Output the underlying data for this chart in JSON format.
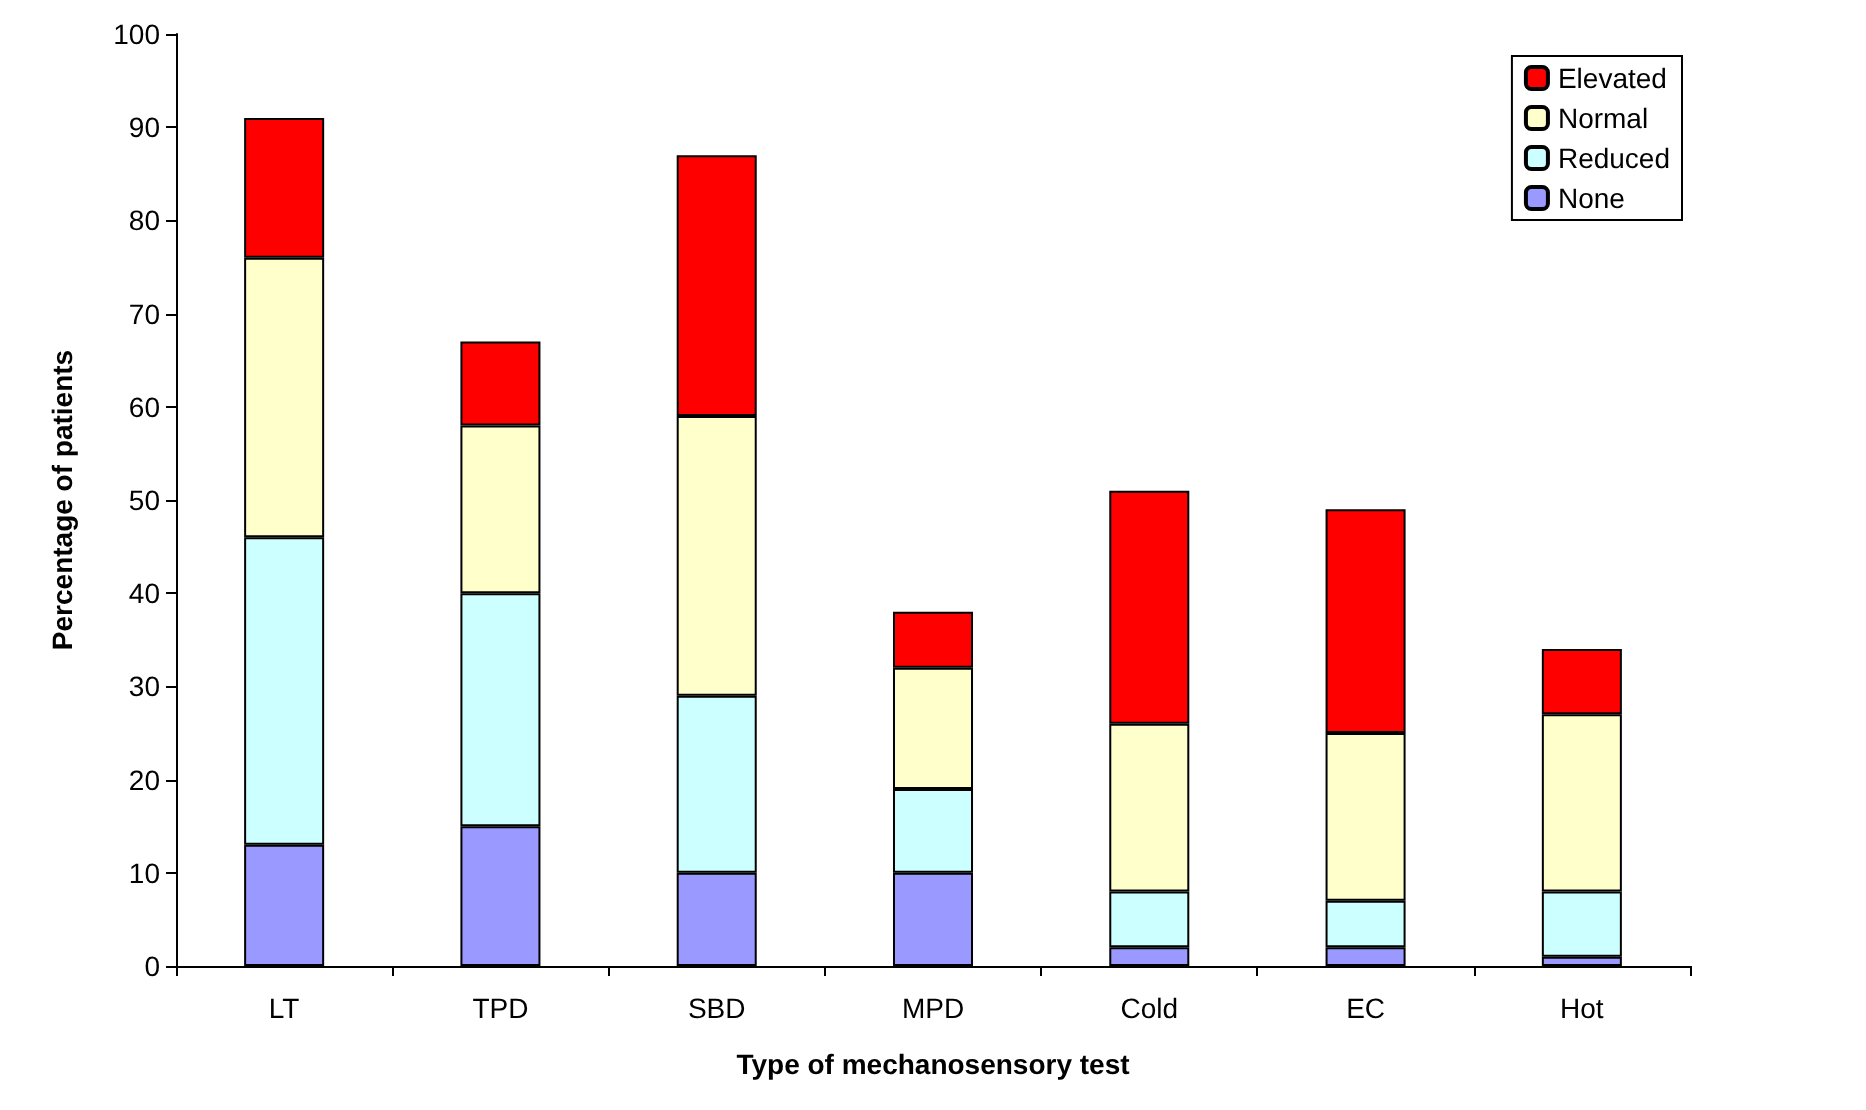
{
  "chart_data": {
    "type": "bar",
    "stacked": true,
    "xlabel": "Type of mechanosensory test",
    "ylabel": "Percentage of patients",
    "categories": [
      "LT",
      "TPD",
      "SBD",
      "MPD",
      "Cold",
      "EC",
      "Hot"
    ],
    "series": [
      {
        "name": "None",
        "color": "#9999ff",
        "values": [
          13,
          15,
          10,
          10,
          2,
          2,
          1
        ]
      },
      {
        "name": "Reduced",
        "color": "#ccffff",
        "values": [
          33,
          25,
          19,
          9,
          6,
          5,
          7
        ]
      },
      {
        "name": "Normal",
        "color": "#ffffcc",
        "values": [
          30,
          18,
          30,
          13,
          18,
          18,
          19
        ]
      },
      {
        "name": "Elevated",
        "color": "#ff0000",
        "values": [
          15,
          9,
          28,
          6,
          25,
          24,
          7
        ]
      }
    ],
    "ylim": [
      0,
      100
    ],
    "yticks": [
      0,
      10,
      20,
      30,
      40,
      50,
      60,
      70,
      80,
      90,
      100
    ],
    "grid": false,
    "legend": "top right"
  }
}
